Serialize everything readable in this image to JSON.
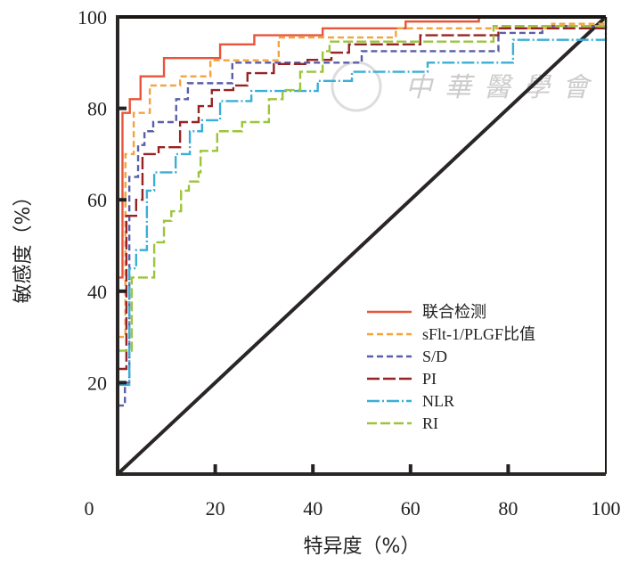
{
  "chart_data": {
    "type": "line",
    "title": "",
    "xlabel": "特异度（%）",
    "ylabel": "敏感度（%）",
    "xlim": [
      0,
      100
    ],
    "ylim": [
      0,
      100
    ],
    "xticks": [
      "0",
      "20",
      "40",
      "60",
      "80",
      "100"
    ],
    "yticks": [
      "20",
      "40",
      "60",
      "80",
      "100"
    ],
    "grid": false,
    "legend_placement": "bottom-right",
    "reference_line": {
      "name": "diagonal",
      "points": [
        [
          0,
          0
        ],
        [
          100,
          100
        ]
      ],
      "color": "#2b2626"
    },
    "series": [
      {
        "name": "联合检测",
        "color": "#e8553a",
        "dash": "none",
        "points": [
          [
            0,
            43
          ],
          [
            1,
            43
          ],
          [
            1,
            79
          ],
          [
            2.5,
            82
          ],
          [
            4.7,
            87
          ],
          [
            9.5,
            91
          ],
          [
            21,
            94
          ],
          [
            28,
            96
          ],
          [
            42,
            97.5
          ],
          [
            59,
            99
          ],
          [
            74,
            100
          ],
          [
            100,
            100
          ]
        ]
      },
      {
        "name": "sFlt-1/PLGF比值",
        "color": "#f4a33c",
        "dash": "7,4",
        "points": [
          [
            0,
            30
          ],
          [
            1,
            30
          ],
          [
            1.6,
            70
          ],
          [
            3.3,
            79
          ],
          [
            6.6,
            85
          ],
          [
            12.8,
            87
          ],
          [
            19,
            90.5
          ],
          [
            33,
            95.5
          ],
          [
            57,
            97.5
          ],
          [
            89,
            98.5
          ],
          [
            100,
            100
          ]
        ]
      },
      {
        "name": "S/D",
        "color": "#5a5ea8",
        "dash": "7,4",
        "points": [
          [
            0,
            15
          ],
          [
            1,
            15
          ],
          [
            1.5,
            20
          ],
          [
            2.4,
            65
          ],
          [
            4.2,
            72
          ],
          [
            5.5,
            75
          ],
          [
            7.3,
            77
          ],
          [
            12,
            82
          ],
          [
            14.4,
            85.5
          ],
          [
            23.5,
            90
          ],
          [
            50,
            92.5
          ],
          [
            78,
            96.5
          ],
          [
            87,
            98
          ],
          [
            100,
            100
          ]
        ]
      },
      {
        "name": "PI",
        "color": "#962325",
        "dash": "14,4",
        "points": [
          [
            0,
            23
          ],
          [
            1.8,
            23
          ],
          [
            1.8,
            56.5
          ],
          [
            3.8,
            60
          ],
          [
            5.1,
            70
          ],
          [
            8.4,
            71.5
          ],
          [
            12.8,
            77
          ],
          [
            16.6,
            80.5
          ],
          [
            19.3,
            84
          ],
          [
            23.7,
            85
          ],
          [
            26.6,
            87.7
          ],
          [
            32,
            89.7
          ],
          [
            38.9,
            90.6
          ],
          [
            43.8,
            92.2
          ],
          [
            47.4,
            94
          ],
          [
            62,
            96
          ],
          [
            78,
            97.5
          ],
          [
            100,
            100
          ]
        ]
      },
      {
        "name": "NLR",
        "color": "#3aaed8",
        "dash": "14,3,2,3",
        "points": [
          [
            0,
            19.5
          ],
          [
            2.4,
            19.5
          ],
          [
            2.4,
            45
          ],
          [
            3.8,
            49
          ],
          [
            6,
            62
          ],
          [
            7.5,
            66
          ],
          [
            11.9,
            70
          ],
          [
            14.8,
            75
          ],
          [
            17.3,
            77.4
          ],
          [
            21,
            81.6
          ],
          [
            27.4,
            83.8
          ],
          [
            41,
            86
          ],
          [
            48,
            88
          ],
          [
            63.5,
            90
          ],
          [
            81,
            95
          ],
          [
            100,
            100
          ]
        ]
      },
      {
        "name": "RI",
        "color": "#9cc43c",
        "dash": "11,4",
        "points": [
          [
            0,
            27
          ],
          [
            2.9,
            27
          ],
          [
            2.9,
            43
          ],
          [
            7.5,
            50.7
          ],
          [
            9.5,
            55.4
          ],
          [
            11,
            57.5
          ],
          [
            13,
            62
          ],
          [
            14.6,
            64
          ],
          [
            16.6,
            66
          ],
          [
            17,
            70.7
          ],
          [
            20.4,
            75
          ],
          [
            25.5,
            77
          ],
          [
            31,
            82
          ],
          [
            33.8,
            84
          ],
          [
            37.4,
            88
          ],
          [
            42,
            92.5
          ],
          [
            43.4,
            94.6
          ],
          [
            77,
            98
          ],
          [
            100,
            100
          ]
        ]
      }
    ]
  },
  "watermark": "中華醫學會"
}
